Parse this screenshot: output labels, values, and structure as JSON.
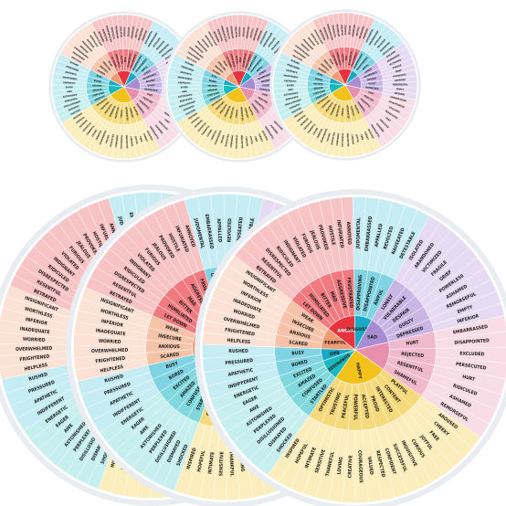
{
  "product": {
    "wheel_count": 6,
    "wheels_small_count": 3,
    "wheels_large_count": 3
  },
  "colors": {
    "background": "#ffffff",
    "rim": "#e9edf1",
    "happy": [
      "#f2c21a",
      "#f6d97b",
      "#fbeebc"
    ],
    "surprised": [
      "#1bb8bf",
      "#7fd8dc",
      "#c7eff0"
    ],
    "bad": [
      "#17a9c6",
      "#7fd3e3",
      "#c6ecf4"
    ],
    "fearful": [
      "#f19a73",
      "#f6c3a9",
      "#fbe2d4"
    ],
    "angry": [
      "#e8333c",
      "#f07a7f",
      "#f8c3c5"
    ],
    "disgusted": [
      "#9a9ea3",
      "#c4c7ca",
      "#e3e5e7"
    ],
    "sad": [
      "#a88bd0",
      "#c9b6e4",
      "#e6dbf2"
    ],
    "pink": [
      "#e88fae",
      "#f1b9cc",
      "#f8dde7"
    ]
  },
  "wheel": {
    "core": [
      {
        "key": "happy",
        "label": "HAPPY",
        "weight": 3
      },
      {
        "key": "surprised",
        "label": "SURPRISED",
        "weight": 1.2
      },
      {
        "key": "bad",
        "label": "BAD",
        "weight": 0.7
      },
      {
        "key": "fearful",
        "label": "FEARFUL",
        "weight": 1.2
      },
      {
        "key": "angry",
        "label": "ANGER",
        "weight": 1.7
      },
      {
        "key": "bad",
        "label": "DISGUSTED",
        "weight": 1
      },
      {
        "key": "sad",
        "label": "SAD",
        "weight": 1.6
      },
      {
        "key": "pink",
        "label": "",
        "weight": 1.6
      }
    ],
    "middle": [
      [
        "PLAYFUL",
        "CONTENT",
        "INTERESTED",
        "PROUD",
        "ACCEPTED",
        "POWERFUL",
        "PEACEFUL",
        "TRUSTING",
        "OPTIMISTIC"
      ],
      [
        "STARTLED",
        "CONFUSED",
        "AMAZED",
        "EXCITED"
      ],
      [
        "BORED",
        "BUSY"
      ],
      [
        "SCARED",
        "ANXIOUS",
        "INSECURE",
        "WEAK"
      ],
      [
        "LET DOWN",
        "HUMILIATED",
        "BITTER",
        "MAD",
        "AGGRESSIVE",
        "FRUSTRATED"
      ],
      [
        "DISAPPROVING",
        "DISAPPOINTED",
        "AWFUL"
      ],
      [
        "LONELY",
        "VULNERABLE",
        "DESPAIR",
        "GUILTY",
        "DEPRESSED"
      ],
      [
        "HURT",
        "REJECTED",
        "RESENTFUL",
        "SHAMEFUL"
      ]
    ],
    "outer": [
      [
        "AROUSED",
        "CHEEKY",
        "FREE",
        "JOYFUL",
        "CURIOUS",
        "INQUISITIVE",
        "SUCCESSFUL",
        "CONFIDENT",
        "RESPECTED",
        "VALUED",
        "COURAGEOUS",
        "CREATIVE",
        "LOVING",
        "THANKFUL",
        "SENSITIVE",
        "INTIMATE",
        "HOPEFUL",
        "INSPIRED"
      ],
      [
        "SHOCKED",
        "DISMAYED",
        "DISILLUSIONED",
        "PERPLEXED",
        "ASTONISHED",
        "AWE",
        "EAGER",
        "ENERGETIC"
      ],
      [
        "INDIFFERENT",
        "APATHETIC",
        "PRESSURED",
        "RUSHED"
      ],
      [
        "HELPLESS",
        "FRIGHTENED",
        "OVERWHELMED",
        "WORRIED",
        "INADEQUATE",
        "INFERIOR",
        "WORTHLESS",
        "INSIGNIFICANT"
      ],
      [
        "BETRAYED",
        "RESENTFUL",
        "DISRESPECTED",
        "RIDICULED",
        "INDIGNANT",
        "VIOLATED",
        "FURIOUS",
        "JEALOUS",
        "PROVOKED",
        "HOSTILE",
        "INFURIATED",
        "ANNOYED"
      ],
      [
        "JUDGMENTAL",
        "EMBARRASSED",
        "APPALLED",
        "REVOLTED",
        "NAUSEATED",
        "DETESTABLE"
      ],
      [
        "ISOLATED",
        "ABANDONED",
        "VICTIMIZED",
        "FRAGILE",
        "GRIEF",
        "POWERLESS",
        "ASHAMED",
        "REMORSEFUL",
        "EMPTY",
        "INFERIOR"
      ],
      [
        "EMBARRASSED",
        "DISAPPOINTED",
        "EXCLUDED",
        "PERSECUTED",
        "HURT",
        "RIDICULED",
        "ASHAMED",
        "REMORSEFUL"
      ]
    ]
  }
}
